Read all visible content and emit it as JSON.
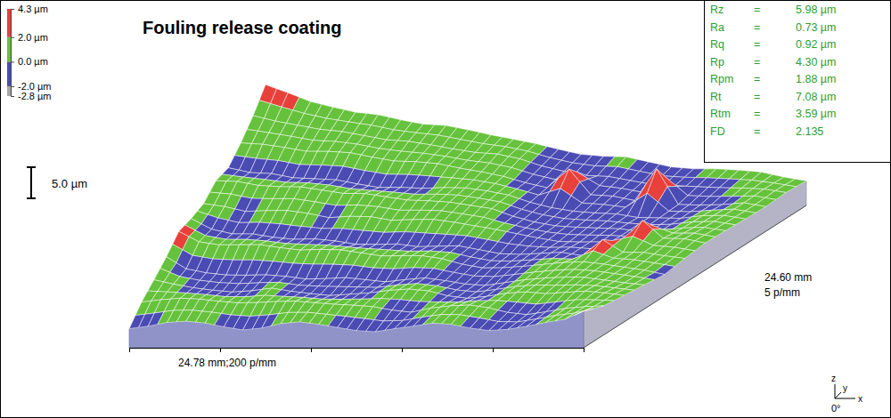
{
  "chart_data": {
    "type": "surface",
    "title": "Fouling release coating",
    "xlim": [
      0,
      24.78
    ],
    "xticks": [
      0,
      4.956,
      9.912,
      14.868,
      19.824,
      24.78
    ],
    "tick_labels": false,
    "x_label": "24.78 mm;200 p/mm",
    "ylim": [
      0,
      24.6
    ],
    "y_label": [
      "24.60 mm",
      "5 p/mm"
    ],
    "zlim": [
      -2.8,
      4.3
    ],
    "colorbar": {
      "range": [
        -2.8,
        4.3
      ],
      "ticks": [
        {
          "value": -2.8,
          "label": "-2.8 µm"
        },
        {
          "value": -2.0,
          "label": "-2.0 µm"
        },
        {
          "value": 0.0,
          "label": "0.0 µm"
        },
        {
          "value": 2.0,
          "label": "2.0 µm"
        },
        {
          "value": 4.3,
          "label": "4.3 µm"
        }
      ],
      "colors": [
        "#a6a6a6",
        "#4b4bb4",
        "#66c23c",
        "#e8403a"
      ]
    },
    "scale_bar": {
      "value": 5.0,
      "label": "5.0 µm"
    },
    "surface": {
      "x": [
        0,
        1.03,
        2.07,
        3.1,
        4.13,
        5.16,
        6.2,
        7.23,
        8.26,
        9.29,
        10.33,
        11.36,
        12.39,
        13.42,
        14.46,
        15.49,
        16.52,
        17.55,
        18.59,
        19.62,
        20.65,
        21.68,
        22.72,
        23.75,
        24.78
      ],
      "y": [
        0,
        2.24,
        4.47,
        6.71,
        8.95,
        11.18,
        13.42,
        15.65,
        17.89,
        20.13,
        22.36,
        24.6
      ],
      "z": [
        [
          -0.6,
          -0.2,
          0.4,
          0.6,
          0.3,
          -0.3,
          -0.8,
          -0.5,
          0.2,
          0.5,
          0.1,
          -0.4,
          -0.9,
          -1.1,
          -0.6,
          -0.2,
          0.3,
          0.1,
          -0.5,
          -0.9,
          -0.7,
          -0.2,
          0.4,
          0.9,
          2.2
        ],
        [
          0.5,
          0.9,
          1.2,
          1.1,
          0.8,
          0.6,
          0.7,
          0.9,
          1.0,
          0.8,
          0.6,
          0.5,
          0.3,
          -0.2,
          -0.5,
          0.2,
          0.6,
          0.8,
          0.4,
          -0.3,
          -0.6,
          -0.1,
          0.5,
          0.8,
          1.0
        ],
        [
          0.9,
          0.3,
          -0.2,
          -0.5,
          -0.7,
          -0.4,
          0.1,
          -0.3,
          -0.6,
          -0.8,
          -0.5,
          -0.2,
          0.3,
          0.6,
          0.4,
          -0.3,
          -0.6,
          -0.2,
          0.4,
          0.7,
          0.5,
          0.8,
          1.1,
          0.9,
          0.6
        ],
        [
          1.4,
          -0.4,
          -0.9,
          -1.1,
          -1.0,
          -0.8,
          -0.9,
          -1.2,
          -1.0,
          -0.7,
          -0.9,
          -1.1,
          -0.6,
          -0.2,
          -0.5,
          -0.9,
          -1.0,
          -0.4,
          0.2,
          0.6,
          0.9,
          1.0,
          0.7,
          0.4,
          0.2
        ],
        [
          2.3,
          0.8,
          0.5,
          0.7,
          0.9,
          0.6,
          0.4,
          0.7,
          0.8,
          0.5,
          0.2,
          0.4,
          0.6,
          0.3,
          -0.4,
          -0.8,
          -0.6,
          -0.2,
          0.3,
          0.8,
          1.1,
          0.9,
          0.6,
          0.3,
          -0.2
        ],
        [
          1.2,
          -0.3,
          -0.8,
          -0.6,
          -0.9,
          -1.0,
          -0.7,
          -0.8,
          -1.1,
          -0.9,
          -0.6,
          -0.8,
          -0.5,
          -0.2,
          -0.6,
          -1.0,
          -0.9,
          -0.5,
          -0.1,
          -0.4,
          2.4,
          0.6,
          0.8,
          0.5,
          0.3
        ],
        [
          0.4,
          0.2,
          -0.3,
          0.1,
          0.4,
          0.2,
          -0.2,
          0.3,
          0.5,
          0.2,
          0.6,
          0.9,
          0.7,
          0.4,
          0.1,
          -0.3,
          -0.7,
          -1.0,
          -0.8,
          -0.5,
          -0.2,
          3.5,
          0.9,
          1.1,
          0.7
        ],
        [
          0.9,
          1.1,
          0.8,
          0.9,
          1.2,
          1.0,
          0.8,
          1.1,
          0.9,
          0.7,
          0.9,
          1.0,
          0.8,
          0.6,
          -0.3,
          -0.9,
          -1.2,
          -1.1,
          -0.9,
          -0.7,
          -0.8,
          -0.3,
          0.4,
          0.8,
          0.6
        ],
        [
          -0.2,
          -0.6,
          -0.4,
          -0.7,
          -0.5,
          -0.3,
          -0.6,
          -0.8,
          -0.4,
          -0.2,
          0.3,
          0.6,
          0.5,
          0.2,
          -0.6,
          -1.1,
          -1.3,
          -1.2,
          -1.0,
          -1.2,
          -0.9,
          -0.6,
          0.2,
          0.6,
          0.4
        ],
        [
          0.6,
          0.8,
          0.7,
          0.5,
          0.9,
          1.1,
          0.8,
          0.6,
          0.9,
          1.0,
          0.7,
          0.5,
          0.2,
          -0.4,
          -0.8,
          2.6,
          -1.1,
          -0.9,
          -1.2,
          4.3,
          -1.0,
          -0.7,
          -0.2,
          0.5,
          0.3
        ],
        [
          1.8,
          1.4,
          1.2,
          1.0,
          1.1,
          0.9,
          0.7,
          0.9,
          0.8,
          0.6,
          0.5,
          0.7,
          0.4,
          -0.3,
          -0.7,
          -0.9,
          -0.6,
          -0.8,
          -1.0,
          -0.7,
          -0.4,
          -0.1,
          0.3,
          0.6,
          0.5
        ],
        [
          3.6,
          2.8,
          1.9,
          1.5,
          1.2,
          1.3,
          1.0,
          0.8,
          1.1,
          0.9,
          0.6,
          0.4,
          0.2,
          -0.2,
          -0.5,
          -0.3,
          0.1,
          -0.2,
          -0.5,
          -0.3,
          0.2,
          0.5,
          0.7,
          0.4,
          0.3
        ]
      ]
    },
    "statistics_separator": "=",
    "statistics": [
      {
        "name": "Rz",
        "value": 5.98,
        "label": "5.98 µm"
      },
      {
        "name": "Ra",
        "value": 0.73,
        "label": "0.73 µm"
      },
      {
        "name": "Rq",
        "value": 0.92,
        "label": "0.92 µm"
      },
      {
        "name": "Rp",
        "value": 4.3,
        "label": "4.30 µm"
      },
      {
        "name": "Rpm",
        "value": 1.88,
        "label": "1.88 µm"
      },
      {
        "name": "Rt",
        "value": 7.08,
        "label": "7.08 µm"
      },
      {
        "name": "Rtm",
        "value": 3.59,
        "label": "3.59 µm"
      },
      {
        "name": "FD",
        "value": 2.135
      }
    ],
    "view": {
      "axes": [
        "z",
        "y",
        "x"
      ],
      "angle": "0°"
    }
  }
}
